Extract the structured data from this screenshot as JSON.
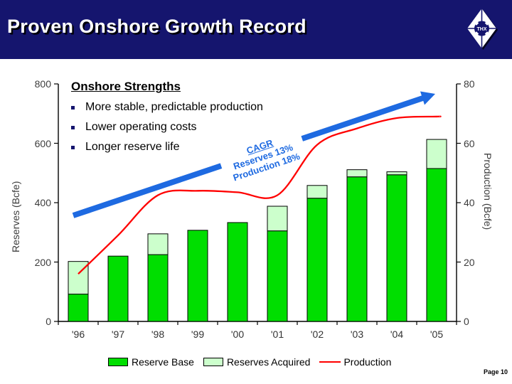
{
  "header": {
    "title": "Proven Onshore Growth Record",
    "logo_text": "THX"
  },
  "strengths": {
    "heading": "Onshore Strengths",
    "items": [
      "More stable, predictable production",
      "Lower operating costs",
      "Longer reserve life"
    ]
  },
  "cagr": {
    "heading": "CAGR",
    "line1": "Reserves 13%",
    "line2": "Production 18%"
  },
  "legend_note": "legend labels bound from chart_data.series names",
  "page_label": "Page 10",
  "colors": {
    "navy": "#15156E",
    "reserve_base": "#00DE00",
    "reserves_acquired": "#CCFFCC",
    "production_line": "#FF0000",
    "arrow_blue": "#1E6AE1",
    "axis_black": "#000000"
  },
  "chart_data": {
    "type": "combo: stacked bar + line",
    "title": "Proven Onshore Growth Record",
    "categories": [
      "'96",
      "'97",
      "'98",
      "'99",
      "'00",
      "'01",
      "'02",
      "'03",
      "'04",
      "'05"
    ],
    "series": [
      {
        "name": "Reserve Base",
        "type": "bar",
        "axis": "left",
        "values": [
          92,
          220,
          225,
          307,
          333,
          305,
          415,
          487,
          494,
          515
        ]
      },
      {
        "name": "Reserves Acquired",
        "type": "bar",
        "axis": "left",
        "values": [
          110,
          0,
          70,
          0,
          0,
          83,
          43,
          24,
          10,
          98
        ]
      },
      {
        "name": "Production",
        "type": "line",
        "axis": "right",
        "values": [
          16,
          29,
          42.5,
          44,
          43.5,
          42.5,
          59.5,
          65,
          68.5,
          69
        ]
      }
    ],
    "left_axis": {
      "label": "Reserves (Bcfe)",
      "min": 0,
      "max": 800,
      "ticks": [
        800,
        600,
        400,
        200,
        0
      ]
    },
    "right_axis": {
      "label": "Production (Bcfe)",
      "min": 0,
      "max": 80,
      "ticks": [
        80,
        60,
        40,
        20,
        0
      ]
    },
    "grid": false,
    "legend_position": "bottom",
    "annotations": [
      "CAGR Reserves 13% Production 18%",
      "upward blue trend arrow"
    ]
  }
}
